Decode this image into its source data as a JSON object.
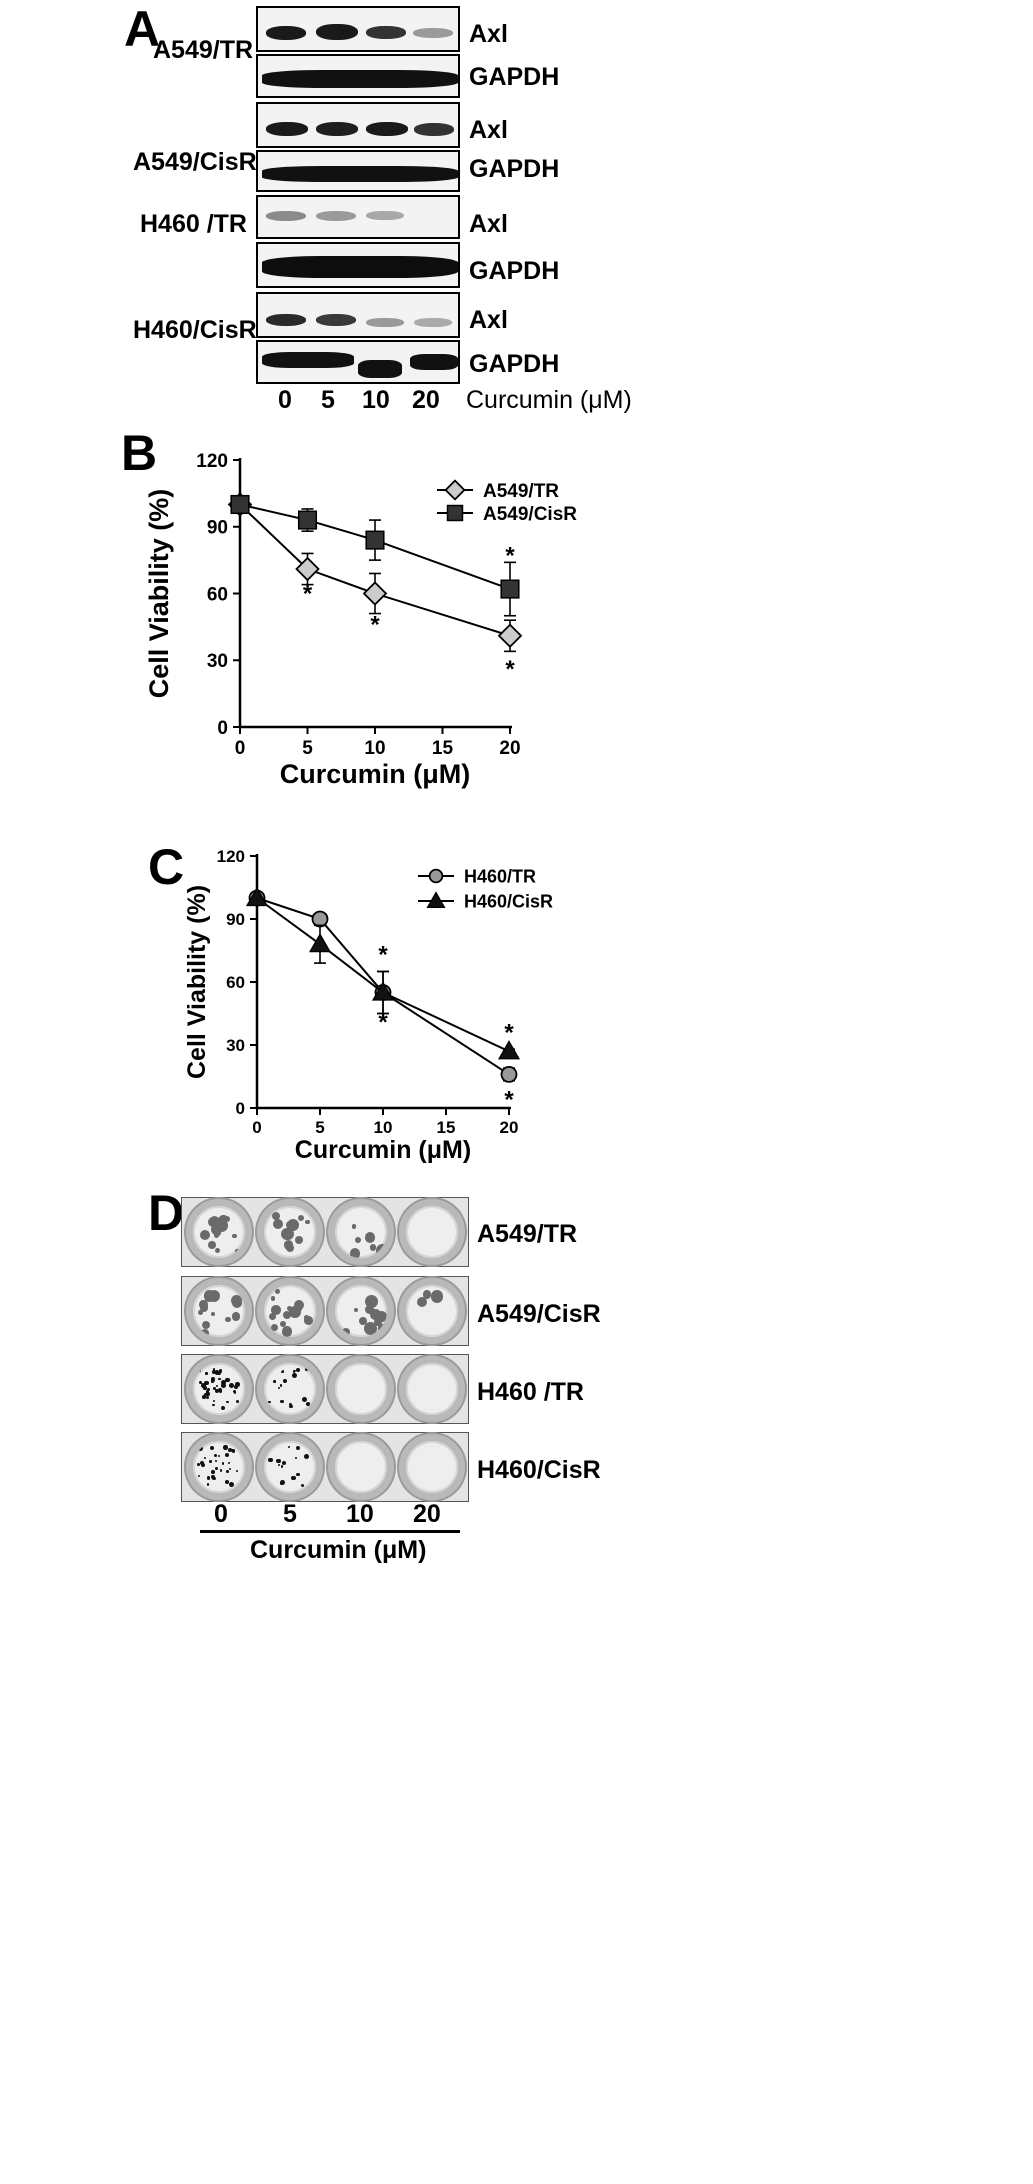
{
  "panel_a": {
    "letter": "A",
    "cell_lines": [
      "A549/TR",
      "A549/CisR",
      "H460 /TR",
      "H460/CisR"
    ],
    "blot_labels": [
      "Axl",
      "GAPDH",
      "Axl",
      "GAPDH",
      "Axl",
      "GAPDH",
      "Axl",
      "GAPDH"
    ],
    "lanes": [
      "0",
      "5",
      "10",
      "20"
    ],
    "x_label": "Curcumin (μM)"
  },
  "panel_b": {
    "letter": "B"
  },
  "panel_c": {
    "letter": "C"
  },
  "panel_d": {
    "letter": "D",
    "rows": [
      "A549/TR",
      "A549/CisR",
      "H460 /TR",
      "H460/CisR"
    ],
    "lanes": [
      "0",
      "5",
      "10",
      "20"
    ],
    "x_label": "Curcumin (μM)"
  },
  "chart_data": [
    {
      "type": "line",
      "panel": "B",
      "xlabel": "Curcumin (μM)",
      "ylabel": "Cell Viability (%)",
      "xlim": [
        0,
        20
      ],
      "ylim": [
        0,
        120
      ],
      "xticks": [
        "0",
        "5",
        "10",
        "15",
        "20"
      ],
      "yticks": [
        "0",
        "30",
        "60",
        "90",
        "120"
      ],
      "legend_position": "top-right",
      "series": [
        {
          "name": "A549/TR",
          "marker": "diamond",
          "color": "#cccccc",
          "x": [
            0,
            5,
            10,
            20
          ],
          "y": [
            100,
            71,
            60,
            41
          ],
          "err": [
            0,
            7,
            9,
            7
          ]
        },
        {
          "name": "A549/CisR",
          "marker": "square",
          "color": "#333333",
          "x": [
            0,
            5,
            10,
            20
          ],
          "y": [
            100,
            93,
            84,
            62
          ],
          "err": [
            0,
            5,
            9,
            12
          ]
        }
      ],
      "annotations": [
        {
          "text": "*",
          "x": 5,
          "y": 61
        },
        {
          "text": "*",
          "x": 10,
          "y": 47
        },
        {
          "text": "*",
          "x": 20,
          "y": 78
        },
        {
          "text": "*",
          "x": 20,
          "y": 27
        }
      ]
    },
    {
      "type": "line",
      "panel": "C",
      "xlabel": "Curcumin (μM)",
      "ylabel": "Cell Viability (%)",
      "xlim": [
        0,
        20
      ],
      "ylim": [
        0,
        120
      ],
      "xticks": [
        "0",
        "5",
        "10",
        "15",
        "20"
      ],
      "yticks": [
        "0",
        "30",
        "60",
        "90",
        "120"
      ],
      "legend_position": "top-right",
      "series": [
        {
          "name": "H460/TR",
          "marker": "circle",
          "color": "#999999",
          "x": [
            0,
            5,
            10,
            20
          ],
          "y": [
            100,
            90,
            55,
            16
          ],
          "err": [
            0,
            1,
            10,
            3
          ]
        },
        {
          "name": "H460/CisR",
          "marker": "triangle",
          "color": "#111111",
          "x": [
            0,
            5,
            10,
            20
          ],
          "y": [
            100,
            78,
            55,
            27
          ],
          "err": [
            0,
            9,
            10,
            1
          ]
        }
      ],
      "annotations": [
        {
          "text": "*",
          "x": 10,
          "y": 74
        },
        {
          "text": "*",
          "x": 10,
          "y": 42
        },
        {
          "text": "*",
          "x": 20,
          "y": 37
        },
        {
          "text": "*",
          "x": 20,
          "y": 5
        }
      ]
    }
  ]
}
